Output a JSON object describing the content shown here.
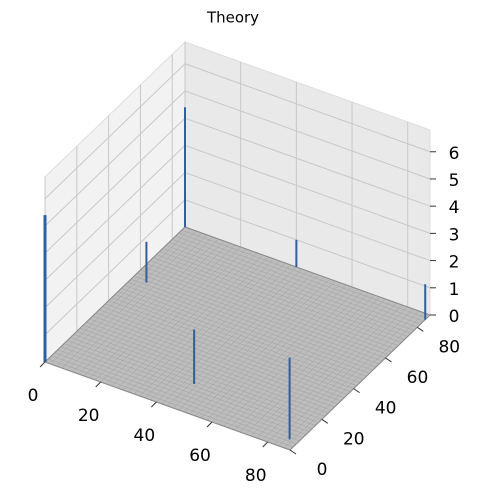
{
  "chart_data": {
    "type": "surface3d",
    "title": "Theory",
    "x": [
      0,
      0,
      85,
      45,
      88,
      5,
      40
    ],
    "y": [
      0,
      88,
      5,
      15,
      85,
      55,
      88
    ],
    "values": [
      5.4,
      4.4,
      3.0,
      2.0,
      1.3,
      1.5,
      1.0
    ],
    "color": "#2f5f9e",
    "surface_color": "#bdbdbd",
    "xlim": [
      0,
      88
    ],
    "ylim": [
      0,
      88
    ],
    "zlim": [
      0,
      6.8
    ],
    "xticks": [
      0,
      20,
      40,
      60,
      80
    ],
    "yticks": [
      0,
      20,
      40,
      60,
      80
    ],
    "zticks": [
      0,
      1,
      2,
      3,
      4,
      5,
      6
    ],
    "grid": true
  }
}
